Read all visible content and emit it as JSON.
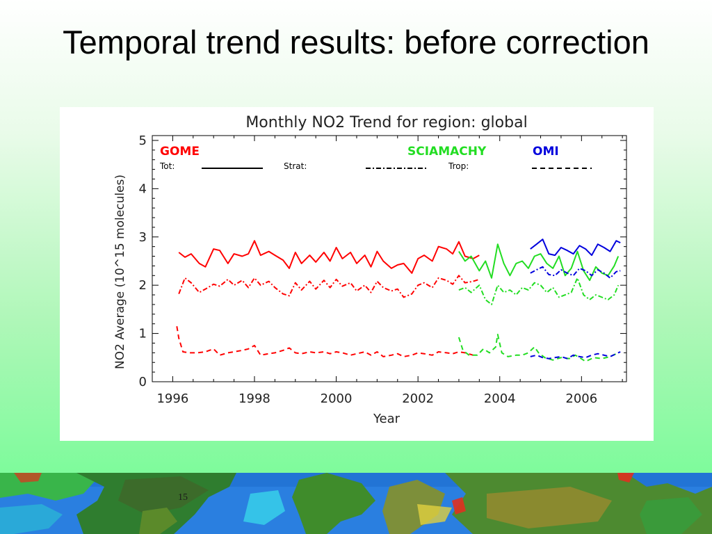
{
  "slide": {
    "title": "Temporal trend results: before correction",
    "page_number": "15"
  },
  "chart_data": {
    "type": "line",
    "title": "Monthly NO2 Trend for region: global",
    "xlabel": "Year",
    "ylabel": "NO2 Average (10^15 molecules)",
    "xlim": [
      1995.5,
      2007.1
    ],
    "ylim": [
      0,
      5.1
    ],
    "x_ticks": [
      1996,
      1998,
      2000,
      2002,
      2004,
      2006
    ],
    "y_ticks": [
      0,
      1,
      2,
      3,
      4,
      5
    ],
    "grid": false,
    "legend": {
      "instruments": [
        {
          "name": "GOME",
          "color": "#ff0000"
        },
        {
          "name": "SCIAMACHY",
          "color": "#22dd22"
        },
        {
          "name": "OMI",
          "color": "#0000dd"
        }
      ],
      "line_styles": [
        {
          "label": "Tot:",
          "style": "solid"
        },
        {
          "label": "Strat:",
          "style": "dash-dot"
        },
        {
          "label": "Trop:",
          "style": "dashed"
        }
      ]
    },
    "series": [
      {
        "instrument": "GOME",
        "component": "Tot",
        "color": "#ff0000",
        "style": "solid",
        "x": [
          1996.15,
          1996.3,
          1996.45,
          1996.65,
          1996.8,
          1997.0,
          1997.15,
          1997.35,
          1997.5,
          1997.7,
          1997.85,
          1998.0,
          1998.15,
          1998.35,
          1998.5,
          1998.7,
          1998.85,
          1999.0,
          1999.15,
          1999.35,
          1999.5,
          1999.7,
          1999.85,
          2000.0,
          2000.15,
          2000.35,
          2000.5,
          2000.7,
          2000.85,
          2001.0,
          2001.15,
          2001.35,
          2001.5,
          2001.65,
          2001.85,
          2002.0,
          2002.15,
          2002.35,
          2002.5,
          2002.7,
          2002.85,
          2003.0,
          2003.15,
          2003.35,
          2003.5
        ],
        "y": [
          2.68,
          2.58,
          2.65,
          2.45,
          2.38,
          2.75,
          2.72,
          2.45,
          2.65,
          2.6,
          2.65,
          2.92,
          2.62,
          2.7,
          2.62,
          2.52,
          2.35,
          2.68,
          2.45,
          2.62,
          2.48,
          2.68,
          2.5,
          2.78,
          2.55,
          2.68,
          2.45,
          2.62,
          2.38,
          2.7,
          2.5,
          2.35,
          2.42,
          2.45,
          2.25,
          2.55,
          2.62,
          2.5,
          2.8,
          2.75,
          2.65,
          2.9,
          2.6,
          2.55,
          2.62
        ]
      },
      {
        "instrument": "GOME",
        "component": "Strat",
        "color": "#ff0000",
        "style": "dash-dot",
        "x": [
          1996.15,
          1996.3,
          1996.45,
          1996.65,
          1996.8,
          1997.0,
          1997.15,
          1997.35,
          1997.5,
          1997.7,
          1997.85,
          1998.0,
          1998.15,
          1998.35,
          1998.5,
          1998.7,
          1998.85,
          1999.0,
          1999.15,
          1999.35,
          1999.5,
          1999.7,
          1999.85,
          2000.0,
          2000.15,
          2000.35,
          2000.5,
          2000.7,
          2000.85,
          2001.0,
          2001.15,
          2001.35,
          2001.5,
          2001.65,
          2001.85,
          2002.0,
          2002.15,
          2002.35,
          2002.5,
          2002.7,
          2002.85,
          2003.0,
          2003.15,
          2003.35,
          2003.5
        ],
        "y": [
          1.82,
          2.15,
          2.05,
          1.85,
          1.92,
          2.02,
          1.98,
          2.12,
          2.0,
          2.1,
          1.95,
          2.15,
          2.0,
          2.08,
          1.95,
          1.82,
          1.78,
          2.05,
          1.9,
          2.08,
          1.92,
          2.1,
          1.95,
          2.12,
          1.98,
          2.05,
          1.88,
          2.0,
          1.85,
          2.08,
          1.95,
          1.88,
          1.92,
          1.75,
          1.82,
          2.0,
          2.05,
          1.95,
          2.15,
          2.1,
          2.02,
          2.2,
          2.05,
          2.08,
          2.12
        ]
      },
      {
        "instrument": "GOME",
        "component": "Trop",
        "color": "#ff0000",
        "style": "dashed",
        "x": [
          1996.1,
          1996.15,
          1996.25,
          1996.4,
          1996.6,
          1996.8,
          1997.0,
          1997.15,
          1997.35,
          1997.5,
          1997.7,
          1997.85,
          1998.0,
          1998.15,
          1998.35,
          1998.5,
          1998.7,
          1998.85,
          1999.0,
          1999.15,
          1999.35,
          1999.5,
          1999.7,
          1999.85,
          2000.0,
          2000.15,
          2000.35,
          2000.5,
          2000.7,
          2000.85,
          2001.0,
          2001.15,
          2001.35,
          2001.5,
          2001.65,
          2001.85,
          2002.0,
          2002.15,
          2002.35,
          2002.5,
          2002.7,
          2002.85,
          2003.0,
          2003.15,
          2003.35
        ],
        "y": [
          1.15,
          0.9,
          0.62,
          0.6,
          0.6,
          0.62,
          0.68,
          0.55,
          0.6,
          0.62,
          0.65,
          0.68,
          0.75,
          0.55,
          0.58,
          0.6,
          0.65,
          0.7,
          0.6,
          0.58,
          0.62,
          0.6,
          0.62,
          0.58,
          0.62,
          0.6,
          0.55,
          0.58,
          0.62,
          0.55,
          0.62,
          0.52,
          0.55,
          0.58,
          0.52,
          0.55,
          0.6,
          0.58,
          0.55,
          0.62,
          0.6,
          0.58,
          0.62,
          0.6,
          0.55
        ]
      },
      {
        "instrument": "SCIAMACHY",
        "component": "Tot",
        "color": "#22dd22",
        "style": "solid",
        "x": [
          2003.0,
          2003.15,
          2003.3,
          2003.5,
          2003.65,
          2003.8,
          2003.95,
          2004.1,
          2004.25,
          2004.4,
          2004.55,
          2004.7,
          2004.85,
          2005.0,
          2005.15,
          2005.3,
          2005.45,
          2005.6,
          2005.75,
          2005.9,
          2006.05,
          2006.2,
          2006.35,
          2006.5,
          2006.65,
          2006.8,
          2006.9
        ],
        "y": [
          2.7,
          2.5,
          2.6,
          2.3,
          2.5,
          2.15,
          2.85,
          2.45,
          2.2,
          2.45,
          2.5,
          2.35,
          2.6,
          2.65,
          2.45,
          2.35,
          2.6,
          2.2,
          2.35,
          2.7,
          2.3,
          2.1,
          2.38,
          2.25,
          2.2,
          2.4,
          2.6
        ]
      },
      {
        "instrument": "SCIAMACHY",
        "component": "Strat",
        "color": "#22dd22",
        "style": "dash-dot",
        "x": [
          2003.0,
          2003.15,
          2003.3,
          2003.5,
          2003.65,
          2003.8,
          2003.95,
          2004.1,
          2004.25,
          2004.4,
          2004.55,
          2004.7,
          2004.85,
          2005.0,
          2005.15,
          2005.3,
          2005.45,
          2005.6,
          2005.75,
          2005.9,
          2006.05,
          2006.2,
          2006.35,
          2006.5,
          2006.65,
          2006.8,
          2006.9
        ],
        "y": [
          1.9,
          1.95,
          1.85,
          2.0,
          1.7,
          1.6,
          2.0,
          1.85,
          1.9,
          1.8,
          1.95,
          1.9,
          2.05,
          2.0,
          1.85,
          1.95,
          1.75,
          1.8,
          1.85,
          2.15,
          1.8,
          1.7,
          1.8,
          1.75,
          1.7,
          1.8,
          2.0
        ]
      },
      {
        "instrument": "SCIAMACHY",
        "component": "Trop",
        "color": "#22dd22",
        "style": "dashed",
        "x": [
          2003.0,
          2003.1,
          2003.25,
          2003.45,
          2003.6,
          2003.75,
          2003.9,
          2003.95,
          2004.05,
          2004.2,
          2004.4,
          2004.55,
          2004.7,
          2004.85,
          2004.95,
          2005.1,
          2005.3,
          2005.5,
          2005.7,
          2005.85,
          2005.95,
          2006.1,
          2006.3,
          2006.5,
          2006.7,
          2006.9
        ],
        "y": [
          0.92,
          0.65,
          0.55,
          0.55,
          0.68,
          0.6,
          0.72,
          0.98,
          0.6,
          0.52,
          0.55,
          0.55,
          0.6,
          0.72,
          0.6,
          0.5,
          0.45,
          0.5,
          0.48,
          0.55,
          0.5,
          0.42,
          0.5,
          0.48,
          0.52,
          0.6
        ]
      },
      {
        "instrument": "OMI",
        "component": "Tot",
        "color": "#0000dd",
        "style": "solid",
        "x": [
          2004.75,
          2004.9,
          2005.05,
          2005.2,
          2005.35,
          2005.5,
          2005.65,
          2005.8,
          2005.95,
          2006.1,
          2006.25,
          2006.4,
          2006.55,
          2006.7,
          2006.85,
          2006.95
        ],
        "y": [
          2.75,
          2.85,
          2.95,
          2.65,
          2.62,
          2.78,
          2.72,
          2.65,
          2.82,
          2.75,
          2.62,
          2.85,
          2.78,
          2.7,
          2.92,
          2.88
        ]
      },
      {
        "instrument": "OMI",
        "component": "Strat",
        "color": "#0000dd",
        "style": "dash-dot",
        "x": [
          2004.75,
          2004.9,
          2005.05,
          2005.2,
          2005.35,
          2005.5,
          2005.65,
          2005.8,
          2005.95,
          2006.1,
          2006.25,
          2006.4,
          2006.55,
          2006.7,
          2006.85,
          2006.95
        ],
        "y": [
          2.25,
          2.32,
          2.38,
          2.22,
          2.2,
          2.32,
          2.25,
          2.2,
          2.35,
          2.3,
          2.2,
          2.32,
          2.25,
          2.15,
          2.28,
          2.3
        ]
      },
      {
        "instrument": "OMI",
        "component": "Trop",
        "color": "#0000dd",
        "style": "dashed",
        "x": [
          2004.75,
          2004.9,
          2005.05,
          2005.2,
          2005.35,
          2005.5,
          2005.65,
          2005.8,
          2005.95,
          2006.1,
          2006.25,
          2006.4,
          2006.55,
          2006.7,
          2006.85,
          2006.95
        ],
        "y": [
          0.52,
          0.55,
          0.5,
          0.48,
          0.5,
          0.52,
          0.48,
          0.55,
          0.52,
          0.5,
          0.55,
          0.58,
          0.55,
          0.52,
          0.58,
          0.62
        ]
      }
    ]
  }
}
